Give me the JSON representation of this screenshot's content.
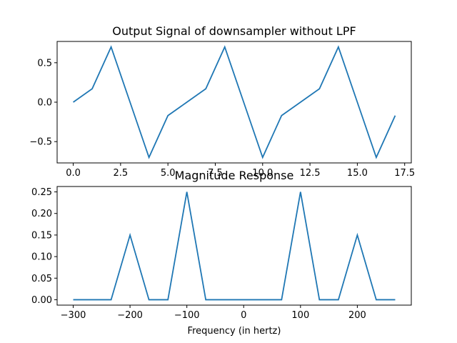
{
  "chart_data": [
    {
      "type": "line",
      "title": "Output Signal of downsampler without LPF",
      "xlabel": "",
      "ylabel": "",
      "xlim": [
        -0.85,
        17.85
      ],
      "ylim": [
        -0.77,
        0.77
      ],
      "xticks": [
        0,
        2.5,
        5,
        7.5,
        10,
        12.5,
        15,
        17.5
      ],
      "xtick_labels": [
        "0.0",
        "2.5",
        "5.0",
        "7.5",
        "10.0",
        "12.5",
        "15.0",
        "17.5"
      ],
      "yticks": [
        -0.5,
        0,
        0.5
      ],
      "ytick_labels": [
        "−0.5",
        "0.0",
        "0.5"
      ],
      "grid": false,
      "series": [
        {
          "color": "#1f77b4",
          "x": [
            0,
            1,
            2,
            3,
            4,
            5,
            6,
            7,
            8,
            9,
            10,
            11,
            12,
            13,
            14,
            15,
            16,
            17
          ],
          "y": [
            0.0,
            0.17,
            0.7,
            0.0,
            -0.7,
            -0.17,
            0.0,
            0.17,
            0.7,
            0.0,
            -0.7,
            -0.17,
            0.0,
            0.17,
            0.7,
            0.0,
            -0.7,
            -0.17
          ]
        }
      ]
    },
    {
      "type": "line",
      "title": "Magnitude Response",
      "xlabel": "Frequency (in hertz)",
      "ylabel": "",
      "xlim": [
        -328.3,
        295
      ],
      "ylim": [
        -0.0125,
        0.2625
      ],
      "xticks": [
        -300,
        -200,
        -100,
        0,
        100,
        200
      ],
      "xtick_labels": [
        "−300",
        "−200",
        "−100",
        "0",
        "100",
        "200"
      ],
      "yticks": [
        0,
        0.05,
        0.1,
        0.15,
        0.2,
        0.25
      ],
      "ytick_labels": [
        "0.00",
        "0.05",
        "0.10",
        "0.15",
        "0.20",
        "0.25"
      ],
      "grid": false,
      "series": [
        {
          "color": "#1f77b4",
          "x": [
            -300,
            -266.7,
            -233.3,
            -200,
            -166.7,
            -133.3,
            -100,
            -66.7,
            -33.3,
            0,
            33.3,
            66.7,
            100,
            133.3,
            166.7,
            200,
            233.3,
            266.7
          ],
          "y": [
            0,
            0,
            0,
            0.15,
            0,
            0,
            0.25,
            0,
            0,
            0,
            0,
            0,
            0.25,
            0,
            0,
            0.15,
            0,
            0
          ]
        }
      ]
    }
  ]
}
